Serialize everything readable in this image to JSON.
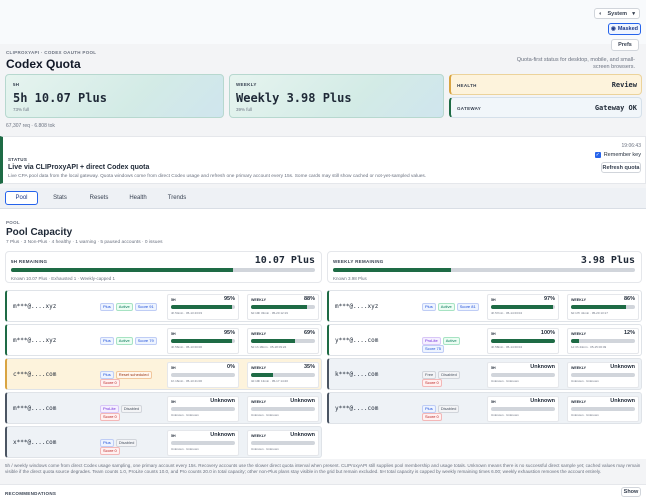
{
  "toolbar": {
    "theme": "System",
    "masked": "Masked",
    "prefs": "Prefs"
  },
  "header": {
    "breadcrumb": "CLIPROXYAPI  ·  CODEX OAUTH POOL",
    "title": "Codex Quota",
    "tagline": "Quota-first status for desktop, mobile, and small-screen browsers."
  },
  "summary": {
    "five_h": {
      "label": "5H",
      "value": "5h 10.07 Plus",
      "sub": "73% full"
    },
    "weekly": {
      "label": "WEEKLY",
      "value": "Weekly 3.98 Plus",
      "sub": "39% full"
    },
    "health": {
      "label": "HEALTH",
      "value": "Review"
    },
    "gateway": {
      "label": "GATEWAY",
      "value": "Gateway OK"
    },
    "footnote": "67,307 req  ·  6.808 tok"
  },
  "status": {
    "timestamp": "19:06:43",
    "label": "STATUS",
    "title": "Live via CLIProxyAPI + direct Codex quota",
    "desc": "Live CPA pool data from the local gateway. Quota windows come from direct Codex usage and refresh one primary account every 15s. Some cards may still show cached or not-yet-sampled values.",
    "remember": "Remember key",
    "refresh": "Refresh quota"
  },
  "tabs": [
    "Pool",
    "Stats",
    "Resets",
    "Health",
    "Trends"
  ],
  "pool": {
    "kicker": "POOL",
    "title": "Pool Capacity",
    "sub": "7 Plus  ·  3 Non-Plus  ·  4 healthy  ·  1 warning  ·  5 paused accounts  ·  0 issues",
    "five_h": {
      "label": "5H REMAINING",
      "value": "10.07 Plus",
      "fill": 0.73,
      "foot": "Known 10.07 Plus  ·  Exhausted 1  ·  Weekly-capped 1"
    },
    "weekly": {
      "label": "WEEKLY REMAINING",
      "value": "3.98 Plus",
      "fill": 0.39,
      "foot": "Known 3.98 Plus"
    }
  },
  "accounts": [
    {
      "name": "m***@....xyz",
      "pills": [
        [
          "Plus",
          "blue"
        ],
        [
          "Active",
          "green"
        ],
        [
          "Score 91",
          "blue"
        ]
      ],
      "h5": "95%",
      "h5f": 0.95,
      "h5m": "4h 54min  ·  05-13 23:03",
      "w": "88%",
      "wf": 0.88,
      "wm": "6d 19h 33min  ·  05-20 12:19",
      "bg": "#fff",
      "edge": "#1e6b45"
    },
    {
      "name": "m***@....xyz",
      "pills": [
        [
          "Plus",
          "blue"
        ],
        [
          "Active",
          "green"
        ],
        [
          "Score 81",
          "blue"
        ]
      ],
      "h5": "97%",
      "h5f": 0.97,
      "h5m": "4h 57min  ·  05-14 03:04",
      "w": "86%",
      "wf": 0.86,
      "wm": "6d 17h 41min  ·  05-20 13:17",
      "bg": "#fff",
      "edge": "#1e6b45"
    },
    {
      "name": "m***@....xyz",
      "pills": [
        [
          "Plus",
          "blue"
        ],
        [
          "Active",
          "green"
        ],
        [
          "Score 79",
          "blue"
        ]
      ],
      "h5": "95%",
      "h5f": 0.95,
      "h5m": "4h 56min  ·  05-13 00:00",
      "w": "69%",
      "wf": 0.69,
      "wm": "5d 1h 18min  ·  05-18 09:24",
      "bg": "#fff",
      "edge": "#1e6b45"
    },
    {
      "name": "y***@....com",
      "pills": [
        [
          "ProLite",
          "purple"
        ],
        [
          "Active",
          "green"
        ],
        [
          "Score 75",
          "blue"
        ]
      ],
      "h5": "100%",
      "h5f": 1.0,
      "h5m": "4h 58min  ·  05-14 00:04",
      "w": "12%",
      "wf": 0.12,
      "wm": "1d 3h 44min  ·  05-15 00:49",
      "bg": "#fff",
      "edge": "#1e6b45"
    },
    {
      "name": "c***@....com",
      "pills": [
        [
          "Plus",
          "blue"
        ],
        [
          "Reset scheduled",
          "amber"
        ],
        [
          "Score 0",
          "red"
        ]
      ],
      "h5": "0%",
      "h5f": 0.0,
      "h5m": "1h 16min  ·  05-13 21:00",
      "w": "35%",
      "wf": 0.35,
      "wm": "3d 19h 13min  ·  05-17 14:20",
      "bg": "#fdf3dc",
      "edge": "#d9a441"
    },
    {
      "name": "k***@....com",
      "pills": [
        [
          "Free",
          "gray"
        ],
        [
          "Disabled",
          "gray"
        ],
        [
          "Score 0",
          "red"
        ]
      ],
      "h5": "Unknown",
      "h5f": 0,
      "h5m": "Unknown  ·  Unknown",
      "w": "Unknown",
      "wf": 0,
      "wm": "Unknown  ·  Unknown",
      "bg": "#eef2f6",
      "edge": "#4b5563"
    },
    {
      "name": "m***@....com",
      "pills": [
        [
          "ProLite",
          "purple"
        ],
        [
          "Disabled",
          "gray"
        ],
        [
          "Score 0",
          "red"
        ]
      ],
      "h5": "Unknown",
      "h5f": 0,
      "h5m": "Unknown  ·  Unknown",
      "w": "Unknown",
      "wf": 0,
      "wm": "Unknown  ·  Unknown",
      "bg": "#eef2f6",
      "edge": "#4b5563"
    },
    {
      "name": "y***@....com",
      "pills": [
        [
          "Plus",
          "blue"
        ],
        [
          "Disabled",
          "gray"
        ],
        [
          "Score 0",
          "red"
        ]
      ],
      "h5": "Unknown",
      "h5f": 0,
      "h5m": "Unknown  ·  Unknown",
      "w": "Unknown",
      "wf": 0,
      "wm": "Unknown  ·  Unknown",
      "bg": "#eef2f6",
      "edge": "#4b5563"
    },
    {
      "name": "x***@....com",
      "pills": [
        [
          "Plus",
          "blue"
        ],
        [
          "Disabled",
          "gray"
        ],
        [
          "Score 0",
          "red"
        ]
      ],
      "h5": "Unknown",
      "h5f": 0,
      "h5m": "Unknown  ·  Unknown",
      "w": "Unknown",
      "wf": 0,
      "wm": "Unknown  ·  Unknown",
      "bg": "#eef2f6",
      "edge": "#4b5563"
    }
  ],
  "footer_note": "5h / weekly windows come from direct Codex usage sampling, one primary account every 15s. Recovery accounts use the slower direct quota interval when present. CLIProxyAPI still supplies pool membership and usage totals. Unknown means there is no successful direct sample yet; cached values may remain visible if the direct quota source degrades. Team counts 1.0, ProLite counts 10.0, and Pro counts 20.0 in total capacity; other non-Plus plans stay visible in the grid but remain excluded. 5H total capacity is capped by weekly remaining times 6.00; weekly exhaustion removes the account entirely.",
  "recommendations": {
    "label": "RECOMMENDATIONS",
    "show": "Show"
  },
  "colors": {
    "accent": "#1e6b45",
    "warning": "#d9a441",
    "link": "#1e3a8a"
  }
}
